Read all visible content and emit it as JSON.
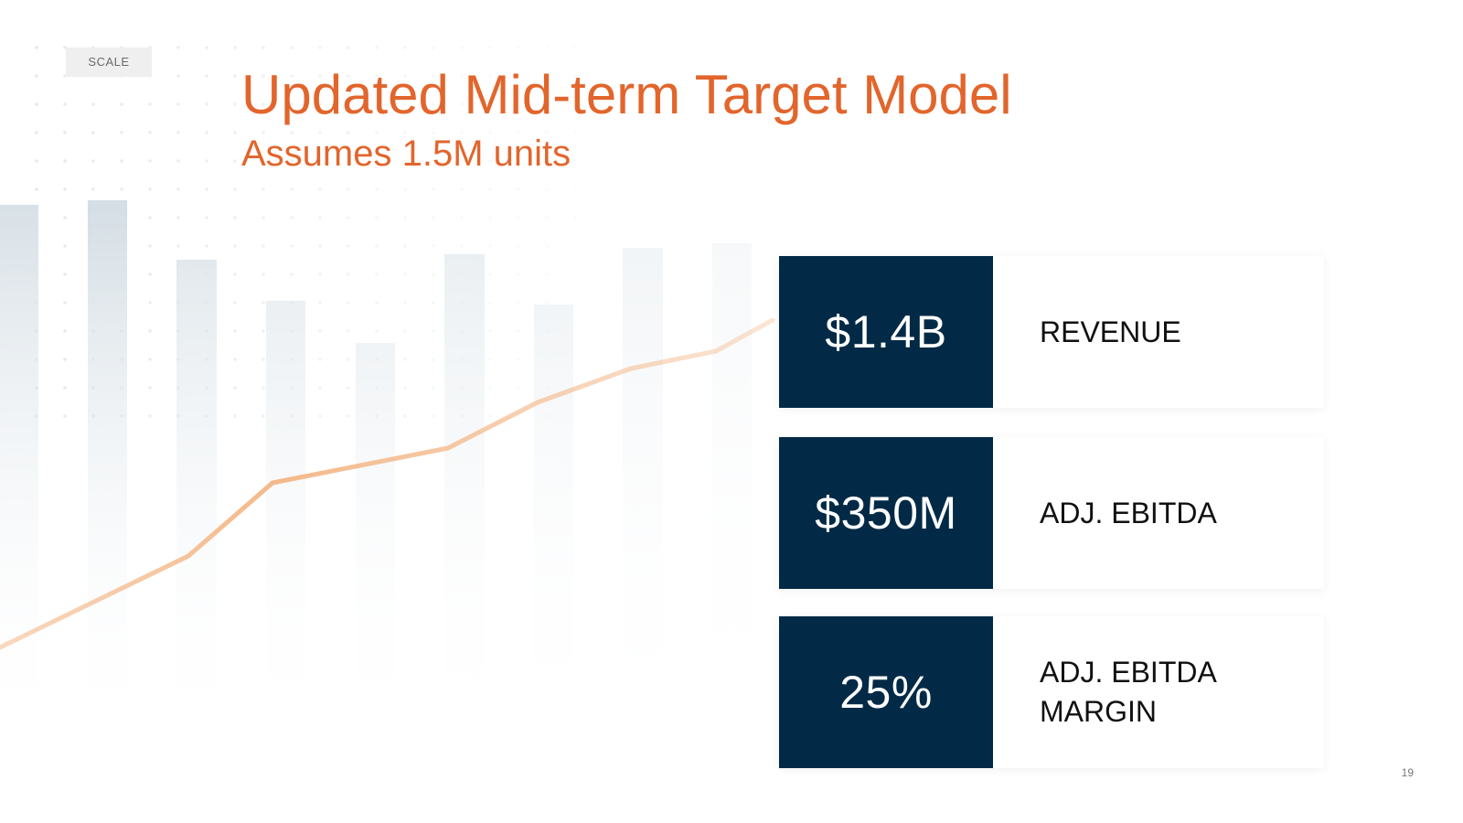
{
  "slide": {
    "section_tag": "SCALE",
    "title": "Updated Mid-term Target Model",
    "subtitle": "Assumes 1.5M units",
    "page_number": "19"
  },
  "metrics": [
    {
      "value": "$1.4B",
      "label": "REVENUE"
    },
    {
      "value": "$350M",
      "label": "ADJ. EBITDA"
    },
    {
      "value": "25%",
      "label": "ADJ. EBITDA\nMARGIN"
    }
  ],
  "colors": {
    "accent_orange": "#e2652c",
    "navy": "#022a46",
    "bar_tint": "#b7c7d2",
    "line_tint": "#f4b98a"
  }
}
